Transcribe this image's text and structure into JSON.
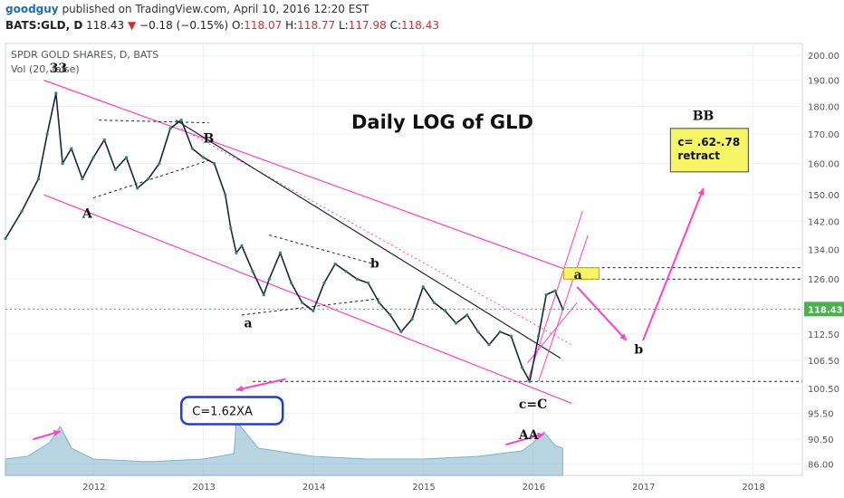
{
  "header": {
    "user": "goodguy",
    "published": "published on TradingView.com, April 10, 2016 12:20 EST",
    "symbol": "BATS:GLD, D",
    "last": "118.43",
    "change": "−0.18 (−0.15%)",
    "open_label": "O:",
    "open": "118.07",
    "high_label": "H:",
    "high": "118.77",
    "low_label": "L:",
    "low": "117.98",
    "close_label": "C:",
    "close": "118.43"
  },
  "chart_data": {
    "type": "line",
    "title": "Daily LOG of GLD",
    "instrument_label": "SPDR GOLD SHARES, D, BATS",
    "volume_label": "Vol (20, false)",
    "log_scale": true,
    "ylim": [
      84,
      205
    ],
    "y_ticks": [
      86,
      90.5,
      95.5,
      100.5,
      106.5,
      112.5,
      118.43,
      126,
      134,
      142,
      150,
      160,
      170,
      180,
      190,
      200
    ],
    "y_tick_labels": [
      "86.00",
      "90.50",
      "95.50",
      "100.50",
      "106.50",
      "112.50",
      "118.43",
      "126.00",
      "134.00",
      "142.00",
      "150.00",
      "160.00",
      "170.00",
      "180.00",
      "190.00",
      "200.00"
    ],
    "x_range": [
      2011.2,
      2018.45
    ],
    "x_ticks": [
      2012,
      2013,
      2014,
      2015,
      2016,
      2017,
      2018
    ],
    "x_tick_labels": [
      "2012",
      "2013",
      "2014",
      "2015",
      "2016",
      "2017",
      "2018"
    ],
    "current_price": 118.43,
    "price_series": {
      "name": "GLD",
      "x": [
        2011.2,
        2011.35,
        2011.5,
        2011.58,
        2011.66,
        2011.72,
        2011.8,
        2011.9,
        2012.0,
        2012.1,
        2012.2,
        2012.3,
        2012.4,
        2012.5,
        2012.6,
        2012.7,
        2012.8,
        2012.9,
        2013.0,
        2013.1,
        2013.2,
        2013.25,
        2013.3,
        2013.35,
        2013.45,
        2013.55,
        2013.6,
        2013.7,
        2013.8,
        2013.9,
        2014.0,
        2014.1,
        2014.2,
        2014.3,
        2014.4,
        2014.5,
        2014.6,
        2014.7,
        2014.8,
        2014.9,
        2015.0,
        2015.1,
        2015.2,
        2015.3,
        2015.4,
        2015.5,
        2015.6,
        2015.7,
        2015.8,
        2015.9,
        2015.97,
        2016.05,
        2016.12,
        2016.2,
        2016.27
      ],
      "y": [
        137,
        145,
        155,
        170,
        185,
        160,
        165,
        155,
        162,
        168,
        158,
        162,
        152,
        155,
        160,
        172,
        175,
        165,
        162,
        160,
        150,
        140,
        133,
        135,
        128,
        122,
        126,
        133,
        125,
        120,
        118,
        125,
        130,
        128,
        126,
        125,
        120,
        117,
        113,
        116,
        124,
        120,
        118,
        115,
        117,
        113,
        110,
        113,
        112,
        105,
        102,
        112,
        122,
        123,
        118.43
      ]
    },
    "volume_series": {
      "name": "Vol",
      "x": [
        2011.2,
        2011.4,
        2011.6,
        2011.7,
        2011.8,
        2012.0,
        2012.5,
        2013.0,
        2013.28,
        2013.3,
        2013.5,
        2014.0,
        2014.5,
        2015.0,
        2015.5,
        2015.9,
        2016.0,
        2016.1,
        2016.2,
        2016.27
      ],
      "y": [
        0.3,
        0.35,
        0.6,
        0.9,
        0.5,
        0.3,
        0.25,
        0.3,
        0.4,
        1.0,
        0.5,
        0.35,
        0.3,
        0.3,
        0.35,
        0.45,
        0.6,
        0.8,
        0.55,
        0.5
      ]
    },
    "annotations": [
      {
        "text": "33",
        "x": 2011.65,
        "y": 193
      },
      {
        "text": "A",
        "x": 2011.95,
        "y": 143
      },
      {
        "text": "B",
        "x": 2013.05,
        "y": 167
      },
      {
        "text": "a",
        "x": 2013.42,
        "y": 114
      },
      {
        "text": "b",
        "x": 2014.57,
        "y": 129
      },
      {
        "text": "c=C",
        "x": 2015.92,
        "y": 96.5
      },
      {
        "text": "AA",
        "x": 2015.92,
        "y": 90.5
      },
      {
        "text": "a",
        "x": 2016.42,
        "y": 126
      },
      {
        "text": "b",
        "x": 2016.97,
        "y": 108
      },
      {
        "text": "BB",
        "x": 2017.5,
        "y": 175
      }
    ],
    "callouts": [
      {
        "text": "C=1.62XA",
        "box_color": "#1c3fd1"
      },
      {
        "text_line1": "c= .62-.78",
        "text_line2": "retract",
        "box_color": "#f5f566"
      }
    ],
    "target_zone": {
      "label": "a",
      "y_low": 126,
      "y_high": 129
    },
    "colors": {
      "price_up": "#2e8b57",
      "price_down": "#1a2440",
      "channel": "#ff40c8",
      "trendline": "#222222",
      "volume": "#7fb3c8",
      "last_price_badge": "#4caf50",
      "callout_border": "#1c3fd1",
      "callout_fill": "#f5f566"
    }
  }
}
